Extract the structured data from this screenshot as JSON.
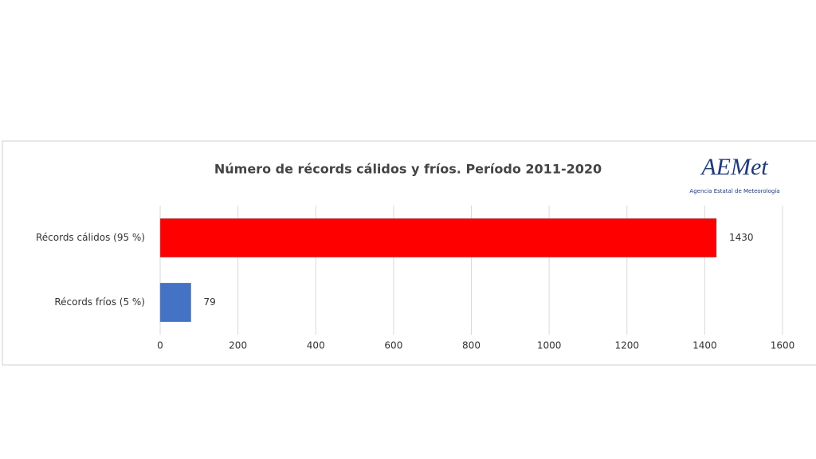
{
  "chart_data": {
    "type": "hbar",
    "title": "Número de récords cálidos y fríos. Período 2011-2020",
    "categories": [
      "Récords cálidos (95 %)",
      "Récords fríos (5 %)"
    ],
    "values": [
      1430,
      79
    ],
    "colors": [
      "#ff0000",
      "#4472c4"
    ],
    "xlim": [
      0,
      1600
    ],
    "xticks": [
      0,
      200,
      400,
      600,
      800,
      1000,
      1200,
      1400,
      1600
    ],
    "grid": true,
    "logo": {
      "name": "AEMet",
      "subtitle": "Agencia Estatal de Meteorología"
    }
  }
}
